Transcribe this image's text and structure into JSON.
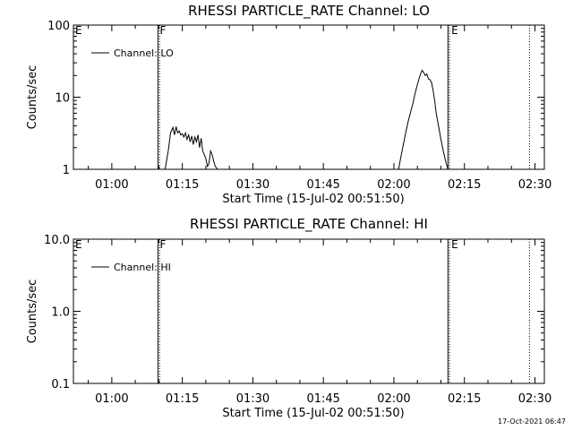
{
  "footer_timestamp": "17-Oct-2021 06:47",
  "chart_data": [
    {
      "type": "line",
      "title": "RHESSI PARTICLE_RATE Channel: LO",
      "xlabel": "Start Time (15-Jul-02 00:51:50)",
      "ylabel": "Counts/sec",
      "yscale": "log",
      "ylim": [
        1,
        100
      ],
      "xlim": [
        "00:51:50",
        "02:32:00"
      ],
      "x_ticks": [
        "01:00",
        "01:15",
        "01:30",
        "01:45",
        "02:00",
        "02:15",
        "02:30"
      ],
      "y_ticks": [
        "1",
        "10",
        "100"
      ],
      "legend": "top-left",
      "grid": false,
      "series": [
        {
          "name": "Channel: LO",
          "x": [
            "01:11:20",
            "01:12:00",
            "01:12:30",
            "01:13:00",
            "01:13:20",
            "01:13:40",
            "01:14:00",
            "01:14:20",
            "01:14:40",
            "01:15:00",
            "01:15:20",
            "01:15:40",
            "01:16:00",
            "01:16:20",
            "01:16:40",
            "01:17:00",
            "01:17:20",
            "01:17:40",
            "01:18:00",
            "01:18:20",
            "01:18:40",
            "01:19:00",
            "01:19:20",
            "01:19:40",
            "01:20:00",
            "01:20:20",
            "01:20:40",
            "01:21:00",
            "01:21:20",
            "01:21:40",
            "01:22:00",
            "01:22:30"
          ],
          "y": [
            1.0,
            1.8,
            3.2,
            3.8,
            3.0,
            3.9,
            3.2,
            3.4,
            3.0,
            3.1,
            2.8,
            3.2,
            2.6,
            3.0,
            2.4,
            2.9,
            2.2,
            2.8,
            2.4,
            3.0,
            2.0,
            2.7,
            1.8,
            1.6,
            1.4,
            1.1,
            1.2,
            1.8,
            1.6,
            1.3,
            1.1,
            1.0
          ]
        },
        {
          "name": "Channel: LO",
          "x": [
            "02:01:00",
            "02:01:30",
            "02:02:00",
            "02:02:30",
            "02:03:00",
            "02:03:30",
            "02:04:00",
            "02:04:20",
            "02:04:40",
            "02:05:00",
            "02:05:20",
            "02:05:40",
            "02:06:00",
            "02:06:20",
            "02:06:40",
            "02:07:00",
            "02:07:20",
            "02:07:40",
            "02:08:00",
            "02:08:20",
            "02:08:40",
            "02:09:00",
            "02:09:30",
            "02:10:00",
            "02:10:30",
            "02:11:00",
            "02:11:30"
          ],
          "y": [
            1.0,
            1.5,
            2.2,
            3.2,
            4.5,
            6.0,
            8.0,
            10.0,
            12.5,
            15.0,
            18.0,
            21.0,
            23.5,
            22.0,
            20.0,
            21.0,
            18.0,
            17.5,
            16.0,
            12.5,
            9.0,
            6.0,
            4.0,
            2.6,
            1.8,
            1.3,
            1.0
          ]
        }
      ],
      "vertical_markers": [
        {
          "label": "E",
          "x": "00:51:50",
          "style": "solid"
        },
        {
          "label": "F",
          "x": "01:09:50",
          "style": "solid"
        },
        {
          "label": "",
          "x": "01:10:10",
          "style": "dotted"
        },
        {
          "label": "",
          "x": "02:11:30",
          "style": "solid"
        },
        {
          "label": "E",
          "x": "02:11:50",
          "style": "dotted"
        },
        {
          "label": "",
          "x": "02:28:50",
          "style": "dotted"
        }
      ]
    },
    {
      "type": "line",
      "title": "RHESSI PARTICLE_RATE Channel: HI",
      "xlabel": "Start Time (15-Jul-02 00:51:50)",
      "ylabel": "Counts/sec",
      "yscale": "log",
      "ylim": [
        0.1,
        10
      ],
      "xlim": [
        "00:51:50",
        "02:32:00"
      ],
      "x_ticks": [
        "01:00",
        "01:15",
        "01:30",
        "01:45",
        "02:00",
        "02:15",
        "02:30"
      ],
      "y_ticks": [
        "0.1",
        "1.0",
        "10.0"
      ],
      "legend": "top-left",
      "grid": false,
      "series": [
        {
          "name": "Channel: HI",
          "x": [],
          "y": []
        }
      ],
      "vertical_markers": [
        {
          "label": "E",
          "x": "00:51:50",
          "style": "solid"
        },
        {
          "label": "F",
          "x": "01:09:50",
          "style": "solid"
        },
        {
          "label": "",
          "x": "01:10:10",
          "style": "dotted"
        },
        {
          "label": "",
          "x": "02:11:30",
          "style": "solid"
        },
        {
          "label": "E",
          "x": "02:11:50",
          "style": "dotted"
        },
        {
          "label": "",
          "x": "02:28:50",
          "style": "dotted"
        }
      ]
    }
  ]
}
